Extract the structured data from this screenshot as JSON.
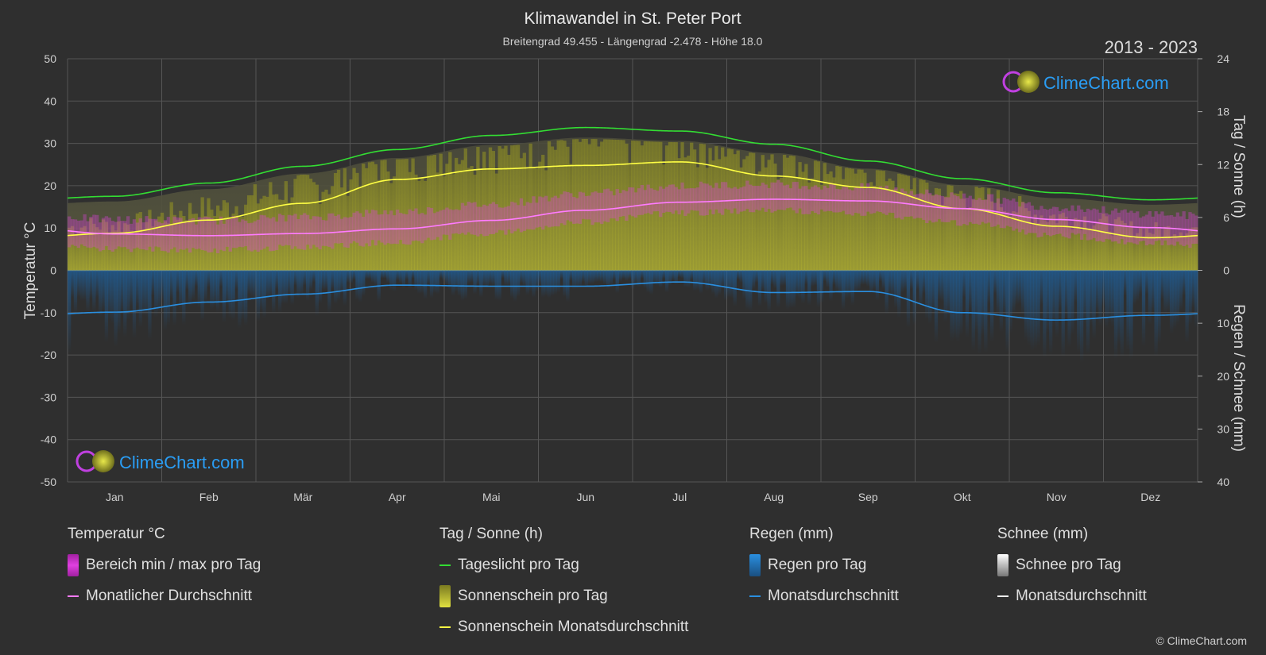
{
  "header": {
    "title": "Klimawandel in St. Peter Port",
    "subtitle": "Breitengrad 49.455 - Längengrad -2.478 - Höhe 18.0",
    "period": "2013 - 2023"
  },
  "brand": {
    "logo_text": "ClimeChart.com",
    "copyright": "© ClimeChart.com"
  },
  "colors": {
    "background": "#2f2f2f",
    "grid": "#555555",
    "temp_range": "#e040e0",
    "temp_avg": "#ff7bff",
    "daylight": "#33dd33",
    "sunshine_fill": "#b8b82a",
    "sunshine_avg": "#ffff44",
    "rain": "#1f6fb3",
    "rain_avg": "#2a8fe0",
    "snow": "#cccccc",
    "logo_blue": "#2a9df4"
  },
  "chart_data": {
    "type": "line",
    "categories": [
      "Jan",
      "Feb",
      "Mär",
      "Apr",
      "Mai",
      "Jun",
      "Jul",
      "Aug",
      "Sep",
      "Okt",
      "Nov",
      "Dez"
    ],
    "y_left": {
      "label": "Temperatur °C",
      "range": [
        -50,
        50
      ],
      "ticks": [
        50,
        40,
        30,
        20,
        10,
        0,
        -10,
        -20,
        -30,
        -40,
        -50
      ]
    },
    "y_right_top": {
      "label": "Tag / Sonne (h)",
      "range": [
        0,
        24
      ],
      "ticks": [
        24,
        18,
        12,
        6,
        0
      ]
    },
    "y_right_bottom": {
      "label": "Regen / Schnee (mm)",
      "range": [
        0,
        40
      ],
      "ticks": [
        0,
        10,
        20,
        30,
        40
      ]
    },
    "grid": true,
    "series": [
      {
        "name": "Tageslicht pro Tag",
        "axis": "hours",
        "values": [
          8.4,
          9.9,
          11.8,
          13.7,
          15.3,
          16.2,
          15.8,
          14.3,
          12.4,
          10.4,
          8.8,
          8.0
        ]
      },
      {
        "name": "Sonnenschein Monatsdurchschnitt",
        "axis": "hours",
        "values": [
          4.2,
          5.7,
          7.6,
          10.3,
          11.5,
          11.9,
          12.3,
          10.7,
          9.4,
          7.0,
          5.0,
          3.7
        ]
      },
      {
        "name": "Monatlicher Durchschnitt",
        "axis": "temp",
        "values": [
          8.6,
          8.2,
          8.7,
          9.8,
          11.8,
          14.2,
          16.1,
          16.8,
          16.4,
          14.6,
          12.0,
          10.1
        ]
      },
      {
        "name": "Regen Monatsdurchschnitt",
        "axis": "rain",
        "values": [
          7.9,
          6.0,
          4.5,
          2.8,
          3.0,
          3.0,
          2.2,
          4.2,
          4.0,
          8.0,
          9.4,
          8.5
        ]
      }
    ],
    "temp_band": {
      "min": [
        5.8,
        5.5,
        6.2,
        7.4,
        9.6,
        12.2,
        14.3,
        14.9,
        14.1,
        12.0,
        9.0,
        7.2
      ],
      "max": [
        11.0,
        10.8,
        11.6,
        12.8,
        14.6,
        17.1,
        19.0,
        19.4,
        18.6,
        16.6,
        14.0,
        12.4
      ]
    },
    "snow_values": [
      0,
      0,
      0,
      0,
      0,
      0,
      0,
      0,
      0,
      0,
      0,
      0
    ]
  },
  "legend": {
    "temperature": {
      "heading": "Temperatur °C",
      "range_label": "Bereich min / max pro Tag",
      "avg_label": "Monatlicher Durchschnitt"
    },
    "sun": {
      "heading": "Tag / Sonne (h)",
      "daylight_label": "Tageslicht pro Tag",
      "sunshine_label": "Sonnenschein pro Tag",
      "sunshine_avg_label": "Sonnenschein Monatsdurchschnitt"
    },
    "rain": {
      "heading": "Regen (mm)",
      "rain_label": "Regen pro Tag",
      "avg_label": "Monatsdurchschnitt"
    },
    "snow": {
      "heading": "Schnee (mm)",
      "snow_label": "Schnee pro Tag",
      "avg_label": "Monatsdurchschnitt"
    }
  }
}
